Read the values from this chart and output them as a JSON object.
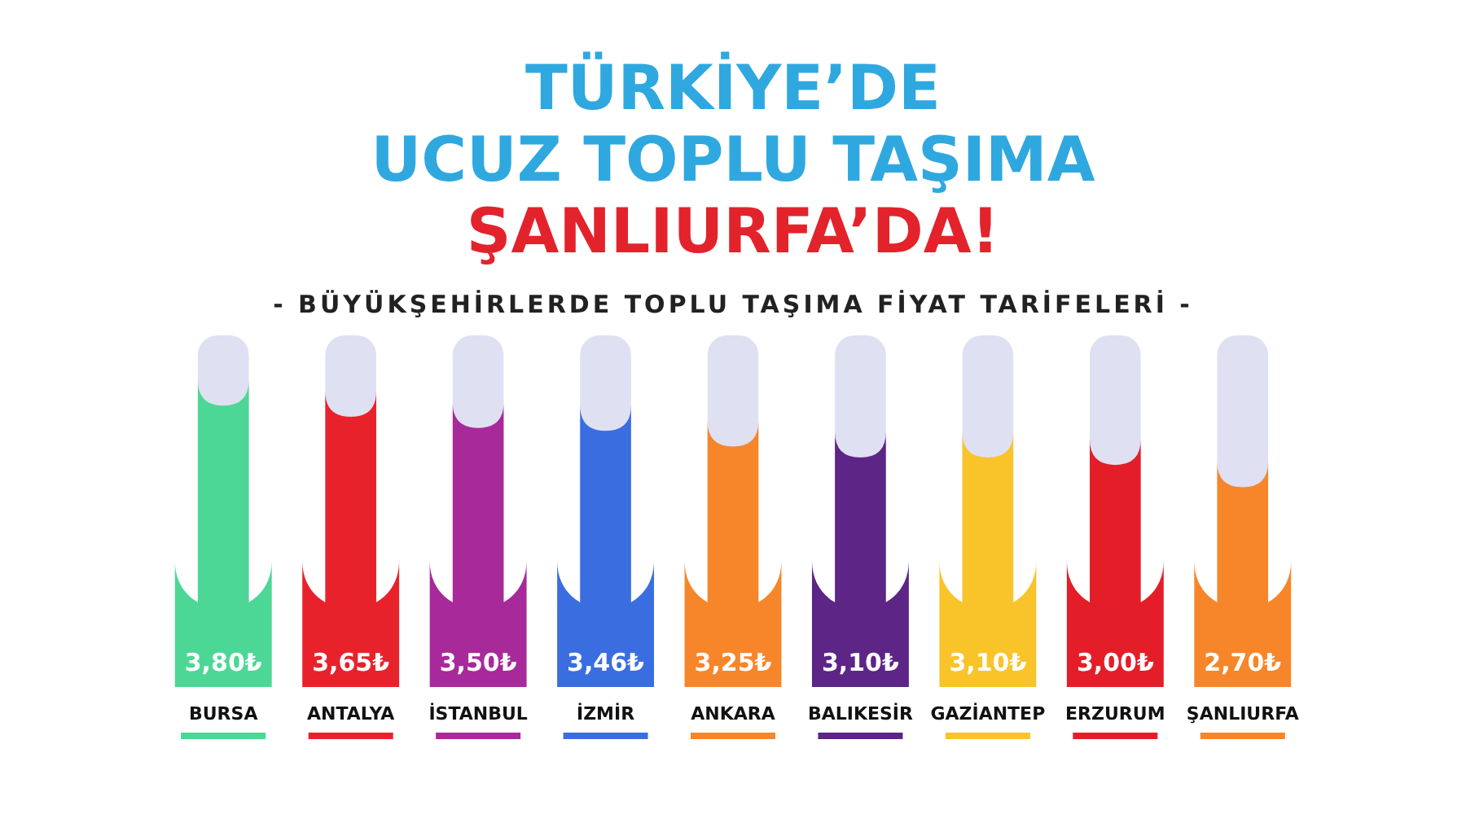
{
  "chart_data": {
    "type": "bar",
    "title": "TÜRKİYE’DE\nUCUZ TOPLU TAŞIMA\nŞANLIURFA’DA!",
    "subtitle": "- BÜYÜKŞEHİRLERDE TOPLU TAŞIMA FİYAT TARİFELERİ -",
    "categories": [
      "BURSA",
      "ANTALYA",
      "İSTANBUL",
      "İZMİR",
      "ANKARA",
      "BALIKESİR",
      "GAZİANTEP",
      "ERZURUM",
      "ŞANLIURFA"
    ],
    "values": [
      3.8,
      3.65,
      3.5,
      3.46,
      3.25,
      3.1,
      3.1,
      3.0,
      2.7
    ],
    "value_labels": [
      "3,80₺",
      "3,65₺",
      "3,50₺",
      "3,46₺",
      "3,25₺",
      "3,10₺",
      "3,10₺",
      "3,00₺",
      "2,70₺"
    ],
    "colors": [
      "#4cd796",
      "#e8222b",
      "#a8299a",
      "#3a6ee0",
      "#f7862a",
      "#5c2586",
      "#f9c42a",
      "#e31e28",
      "#f7862a"
    ],
    "data_labels": false
  }
}
